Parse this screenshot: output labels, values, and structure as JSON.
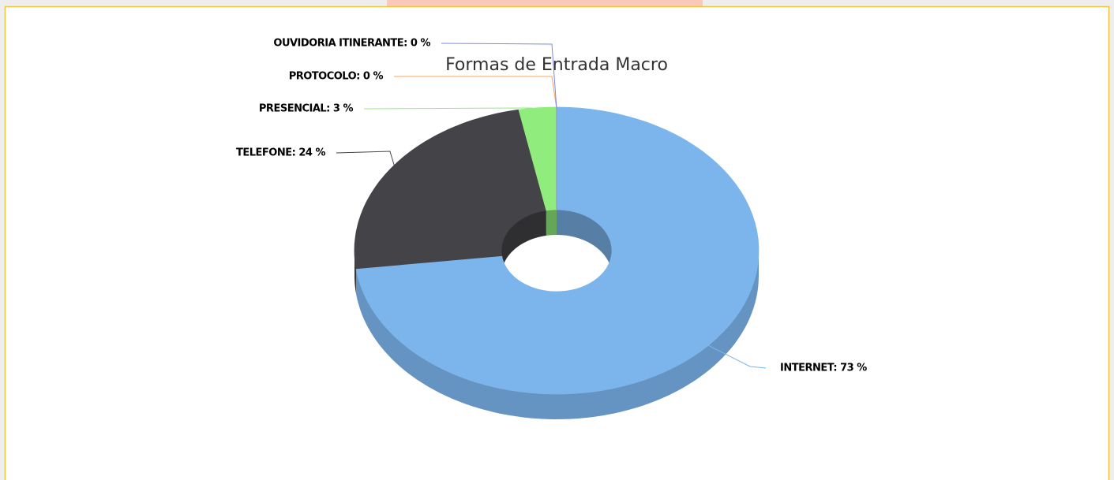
{
  "chart_data": {
    "type": "pie3d",
    "title": "Formas de Entrada Macro",
    "values": [
      73,
      24,
      3,
      0,
      0
    ],
    "value_labels": [
      "INTERNET: 73 %",
      "TELEFONE: 24 %",
      "PRESENCIAL: 3 %",
      "PROTOCOLO: 0 %",
      "OUVIDORIA ITINERANTE: 0 %"
    ],
    "colors": [
      "#7cb5ec",
      "#434348",
      "#90ed7d",
      "#f7a35c",
      "#8085e9"
    ]
  }
}
